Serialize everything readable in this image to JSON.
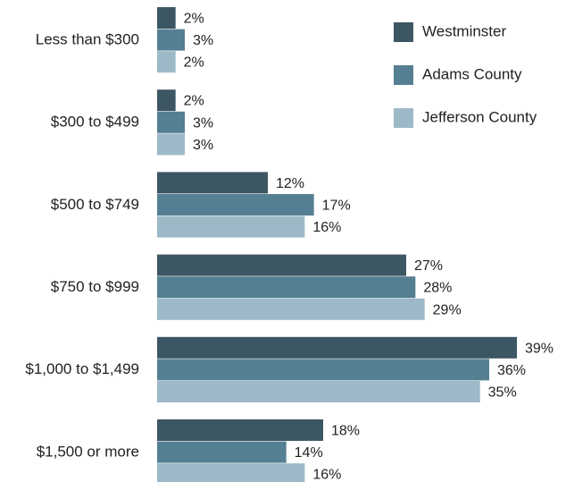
{
  "chart_data": {
    "type": "hbar",
    "categories": [
      "Less than $300",
      "$300 to $499",
      "$500 to $749",
      "$750 to $999",
      "$1,000 to $1,499",
      "$1,500 or more"
    ],
    "series": [
      {
        "name": "Westminster",
        "color": "#3d5663",
        "values": [
          2,
          2,
          12,
          27,
          39,
          18
        ],
        "value_labels": [
          "2%",
          "2%",
          "12%",
          "27%",
          "39%",
          "18%"
        ]
      },
      {
        "name": "Adams County",
        "color": "#557f92",
        "values": [
          3,
          3,
          17,
          28,
          36,
          14
        ],
        "value_labels": [
          "3%",
          "3%",
          "17%",
          "28%",
          "36%",
          "14%"
        ]
      },
      {
        "name": "Jefferson County",
        "color": "#9db9c7",
        "values": [
          2,
          3,
          16,
          29,
          35,
          16
        ],
        "value_labels": [
          "2%",
          "3%",
          "16%",
          "29%",
          "35%",
          "16%"
        ]
      }
    ],
    "legend": "upper right"
  }
}
